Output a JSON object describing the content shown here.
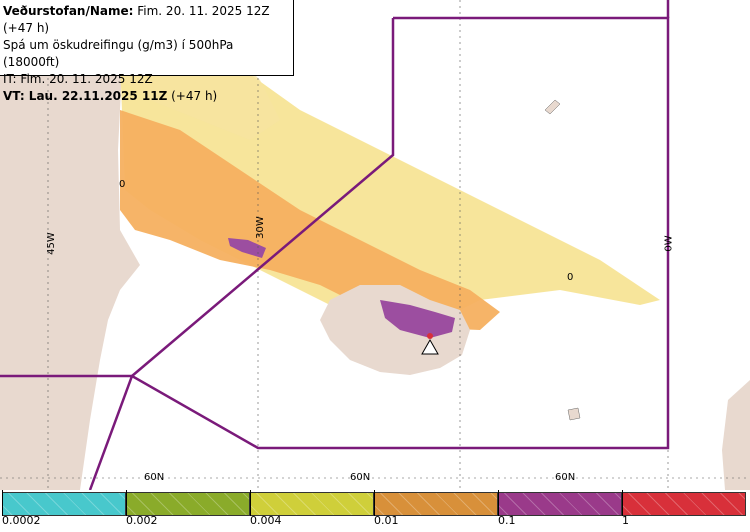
{
  "header": {
    "line1_bold": "Veðurstofan/Name:",
    "line1_rest": " Fim. 20. 11. 2025 12Z (+47 h)",
    "line2": "Spá um öskudreifingu (g/m3) í 500hPa (18000ft)",
    "line3": "IT: Fim. 20. 11. 2025 12Z",
    "line4_bold": "VT: Lau. 22.11.2025 11Z",
    "line4_rest": " (+47 h)"
  },
  "map_labels": {
    "lon_left": "45W",
    "lon_mid": "30W",
    "lon_right": "0W",
    "lat_a": "60N",
    "lat_b": "60N",
    "lat_c": "60N",
    "zero_a": "0",
    "zero_b": "0"
  },
  "legend": {
    "ticks": [
      "0.0002",
      "0.002",
      "0.004",
      "0.01",
      "0.1",
      "1"
    ],
    "colors": [
      "#48c8cc",
      "#8aab2a",
      "#cfcf3a",
      "#d8903a",
      "#9a3a8a",
      "#d8303a"
    ]
  },
  "colors": {
    "land": "#e8d9cf",
    "ash_light": "#f6e08a",
    "ash_orange": "#f5b060",
    "ash_purple": "#9c4ea0",
    "boundary": "#7a1a7a"
  }
}
